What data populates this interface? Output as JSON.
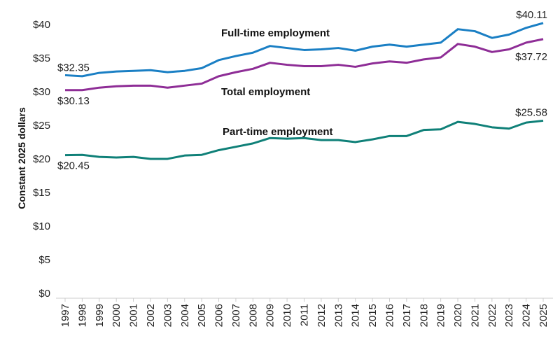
{
  "chart_data": {
    "type": "line",
    "title": "",
    "xlabel": "",
    "ylabel": "Constant 2025 dollars",
    "ylim": [
      0,
      40
    ],
    "yticks": [
      "$0",
      "$5",
      "$10",
      "$15",
      "$20",
      "$25",
      "$30",
      "$35",
      "$40"
    ],
    "ytick_values": [
      0,
      5,
      10,
      15,
      20,
      25,
      30,
      35,
      40
    ],
    "grid": false,
    "x": [
      "1997",
      "1998",
      "1999",
      "2000",
      "2001",
      "2002",
      "2003",
      "2004",
      "2005",
      "2006",
      "2007",
      "2008",
      "2009",
      "2010",
      "2011",
      "2012",
      "2013",
      "2014",
      "2015",
      "2016",
      "2017",
      "2018",
      "2019",
      "2020",
      "2021",
      "2022",
      "2023",
      "2024",
      "2025"
    ],
    "series": [
      {
        "name": "Full-time employment",
        "color": "#1a7fc4",
        "values": [
          32.35,
          32.2,
          32.7,
          32.9,
          33.0,
          33.1,
          32.8,
          33.0,
          33.4,
          34.6,
          35.2,
          35.7,
          36.7,
          36.4,
          36.1,
          36.2,
          36.4,
          36.0,
          36.6,
          36.9,
          36.6,
          36.9,
          37.2,
          39.2,
          38.9,
          37.9,
          38.4,
          39.4,
          40.11
        ],
        "start_label": "$32.35",
        "end_label": "$40.11"
      },
      {
        "name": "Total employment",
        "color": "#8e2d96",
        "values": [
          30.13,
          30.13,
          30.5,
          30.7,
          30.8,
          30.8,
          30.5,
          30.8,
          31.1,
          32.2,
          32.8,
          33.3,
          34.2,
          33.9,
          33.7,
          33.7,
          33.9,
          33.6,
          34.1,
          34.4,
          34.2,
          34.7,
          35.0,
          37.0,
          36.6,
          35.8,
          36.2,
          37.2,
          37.72
        ],
        "start_label": "$30.13",
        "end_label": "$37.72"
      },
      {
        "name": "Part-time employment",
        "color": "#0f8078",
        "values": [
          20.45,
          20.5,
          20.2,
          20.1,
          20.2,
          19.9,
          19.9,
          20.4,
          20.5,
          21.2,
          21.7,
          22.2,
          23.0,
          22.9,
          23.0,
          22.7,
          22.7,
          22.4,
          22.8,
          23.3,
          23.3,
          24.2,
          24.3,
          25.4,
          25.1,
          24.6,
          24.4,
          25.3,
          25.58
        ],
        "start_label": "$20.45",
        "end_label": "$25.58"
      }
    ]
  }
}
